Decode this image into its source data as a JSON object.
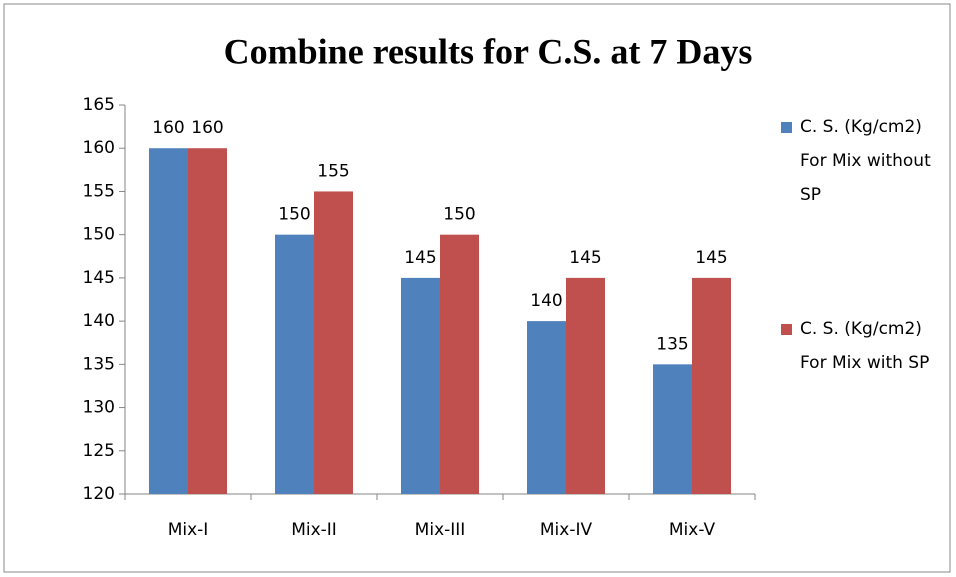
{
  "chart_data": {
    "type": "bar",
    "title": "Combine results for C.S. at 7 Days",
    "categories": [
      "Mix-I",
      "Mix-II",
      "Mix-III",
      "Mix-IV",
      "Mix-V"
    ],
    "series": [
      {
        "name": "C. S. (Kg/cm2) For Mix without SP",
        "color": "#4f81bd",
        "values": [
          160,
          150,
          145,
          140,
          135
        ]
      },
      {
        "name": "C. S. (Kg/cm2) For Mix with SP",
        "color": "#c0504d",
        "values": [
          160,
          155,
          150,
          145,
          145
        ]
      }
    ],
    "ylim": [
      120,
      165
    ],
    "yticks": [
      120,
      125,
      130,
      135,
      140,
      145,
      150,
      155,
      160,
      165
    ],
    "grid": false,
    "legend": "right"
  }
}
